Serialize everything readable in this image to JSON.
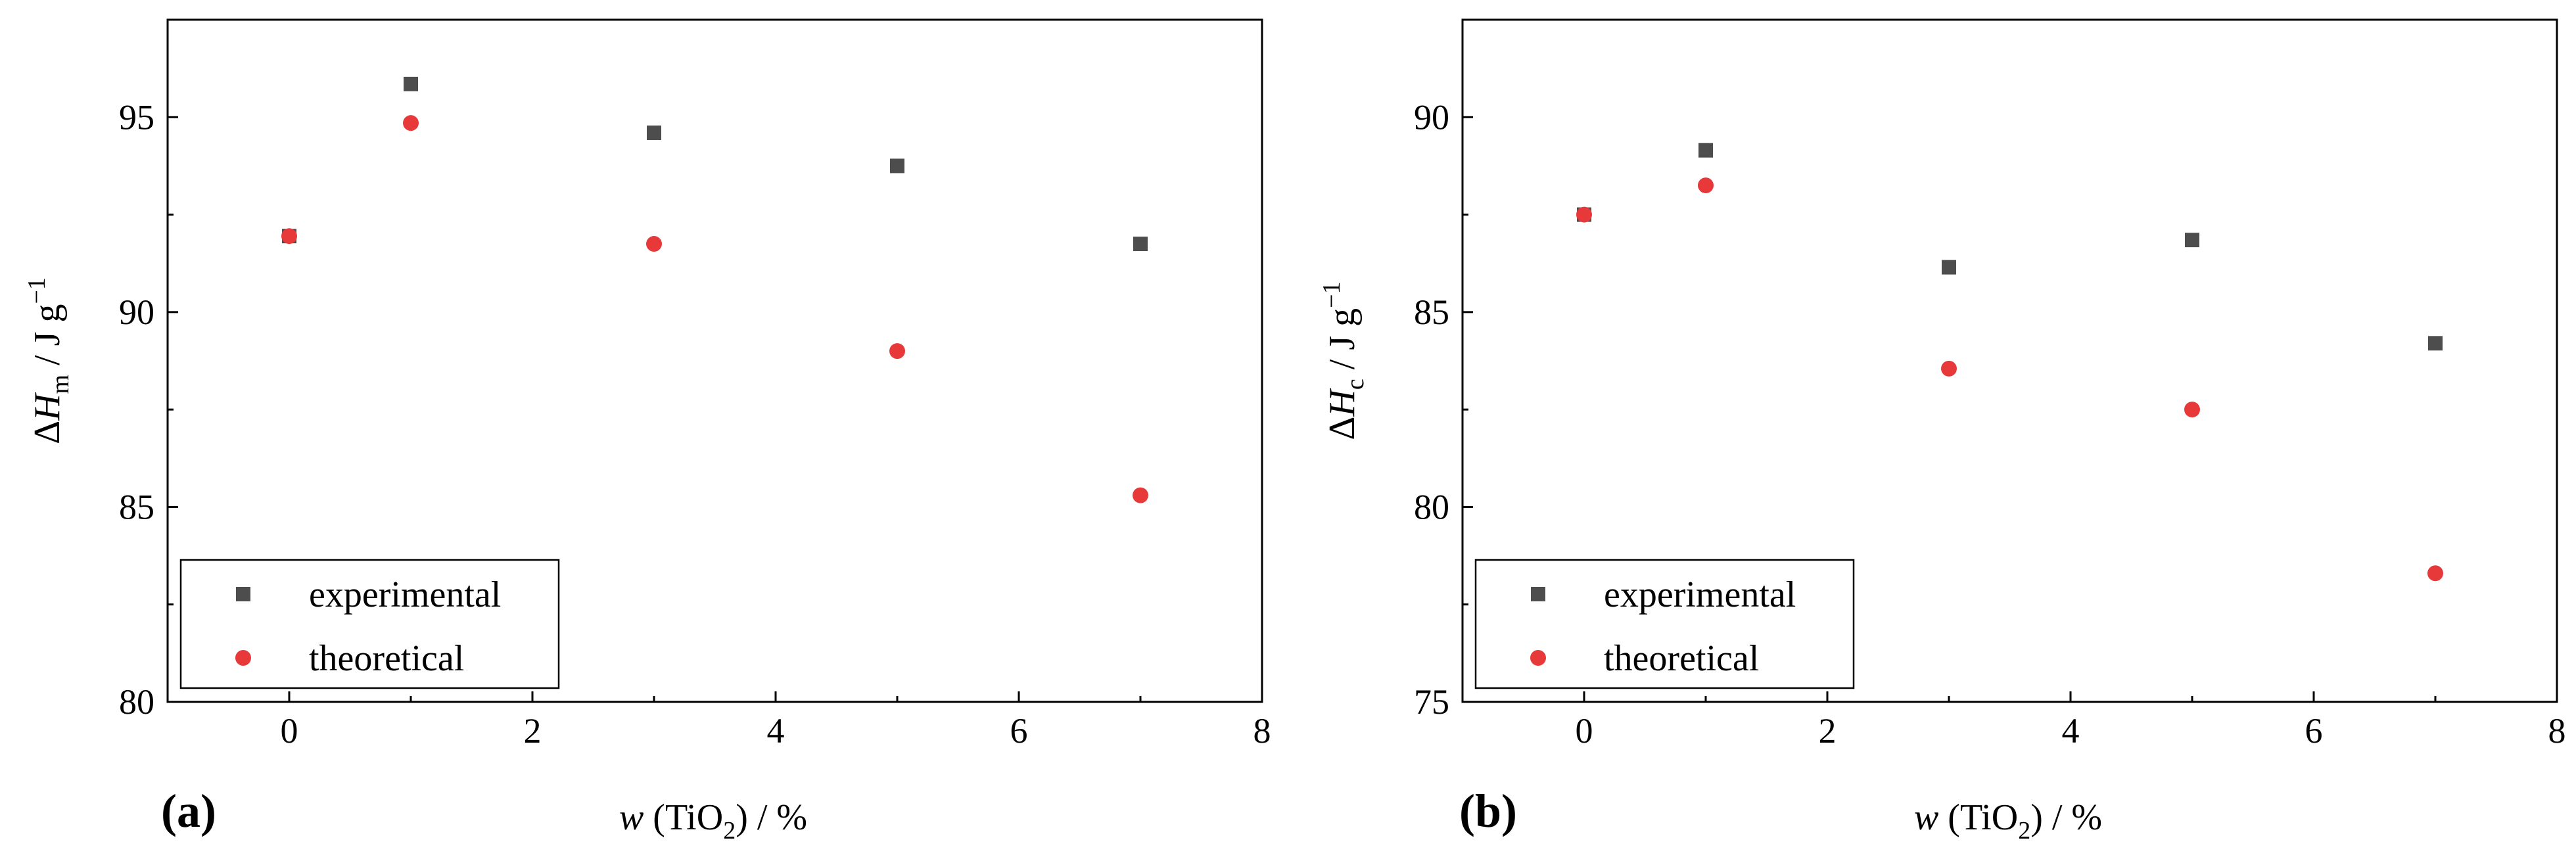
{
  "chart_data": [
    {
      "type": "scatter",
      "panel_label": "(a)",
      "xlabel": {
        "var": "w",
        "prefix": " (TiO",
        "sub": "2",
        "suffix": ") / %"
      },
      "ylabel": {
        "delta": "Δ",
        "var": "H",
        "sub": "m",
        "unit": " / J g",
        "sup": "−1"
      },
      "xlim": [
        -1,
        8
      ],
      "ylim": [
        80,
        97.5
      ],
      "xticks": [
        0,
        2,
        4,
        6,
        8
      ],
      "yticks": [
        80,
        85,
        90,
        95
      ],
      "legend_position": "bottom-left",
      "series": [
        {
          "name": "experimental",
          "marker": "square",
          "color": "#4d4d4d",
          "x": [
            0,
            1,
            3,
            5,
            7
          ],
          "y": [
            91.95,
            95.85,
            94.6,
            93.75,
            91.75
          ]
        },
        {
          "name": "theoretical",
          "marker": "circle",
          "color": "#e8393a",
          "x": [
            0,
            1,
            3,
            5,
            7
          ],
          "y": [
            91.95,
            94.85,
            91.75,
            89.0,
            85.3
          ]
        }
      ]
    },
    {
      "type": "scatter",
      "panel_label": "(b)",
      "xlabel": {
        "var": "w",
        "prefix": " (TiO",
        "sub": "2",
        "suffix": ") / %"
      },
      "ylabel": {
        "delta": "Δ",
        "var": "H",
        "sub": "c",
        "unit": " / J g",
        "sup": "−1"
      },
      "xlim": [
        -1,
        8
      ],
      "ylim": [
        75,
        92.5
      ],
      "xticks": [
        0,
        2,
        4,
        6,
        8
      ],
      "yticks": [
        75,
        80,
        85,
        90
      ],
      "legend_position": "bottom-left",
      "series": [
        {
          "name": "experimental",
          "marker": "square",
          "color": "#4d4d4d",
          "x": [
            0,
            1,
            3,
            5,
            7
          ],
          "y": [
            87.5,
            89.15,
            86.15,
            86.85,
            84.2
          ]
        },
        {
          "name": "theoretical",
          "marker": "circle",
          "color": "#e8393a",
          "x": [
            0,
            1,
            3,
            5,
            7
          ],
          "y": [
            87.5,
            88.25,
            83.55,
            82.5,
            78.3
          ]
        }
      ]
    }
  ]
}
